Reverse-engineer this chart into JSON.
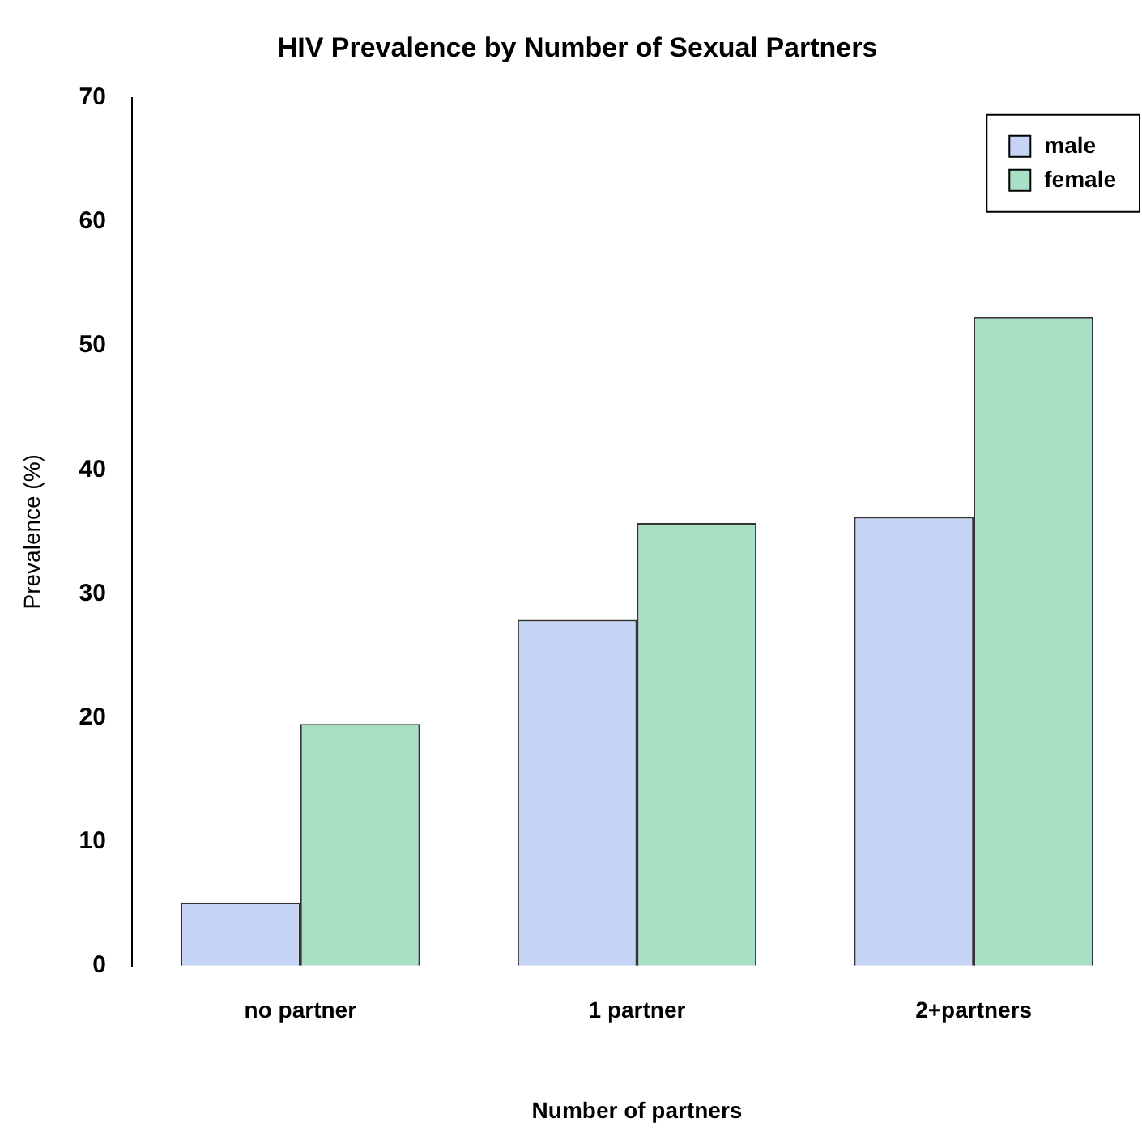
{
  "chart_data": {
    "type": "bar",
    "title": "HIV Prevalence by Number of Sexual Partners",
    "xlabel": "Number of partners",
    "ylabel": "Prevalence (%)",
    "categories": [
      "no partner",
      "1 partner",
      "2+partners"
    ],
    "series": [
      {
        "name": "male",
        "color": "#c6d5f5",
        "values": [
          5.1,
          27.9,
          36.2
        ]
      },
      {
        "name": "female",
        "color": "#a7e0c4",
        "values": [
          19.5,
          35.7,
          52.3
        ]
      }
    ],
    "ylim": [
      0,
      70
    ],
    "yticks": [
      0,
      10,
      20,
      30,
      40,
      50,
      60,
      70
    ],
    "grid": false,
    "legend": "top right"
  }
}
